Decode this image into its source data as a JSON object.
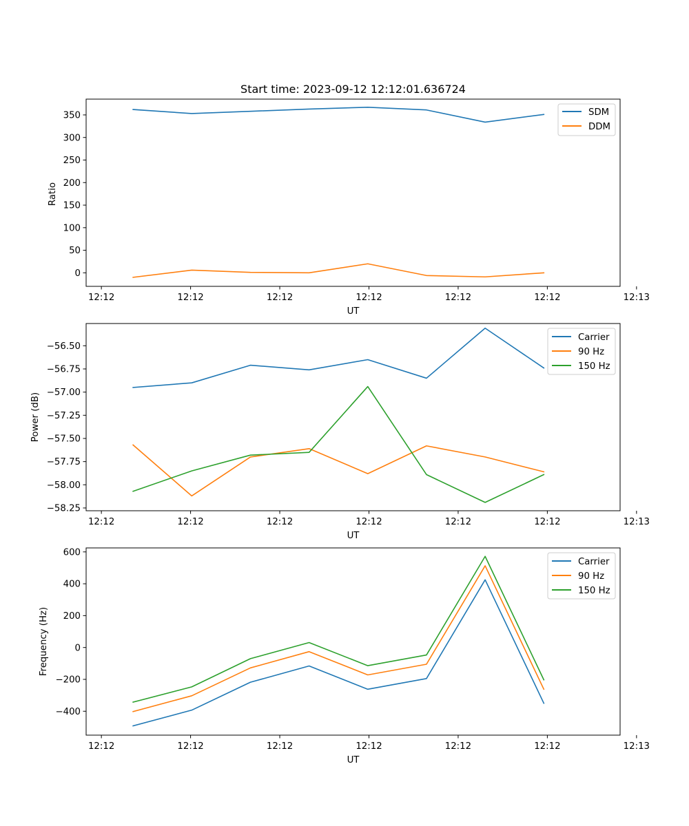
{
  "chart_data": [
    {
      "type": "line",
      "title": "Start time: 2023-09-12 12:12:01.636724",
      "xlabel": "UT",
      "ylabel": "Ratio",
      "x": [
        1,
        2,
        3,
        4,
        5,
        6,
        7,
        8
      ],
      "xlim": [
        0.2,
        9.3
      ],
      "xticks": [
        0.46,
        1.98,
        3.5,
        5.02,
        6.54,
        8.06,
        9.58
      ],
      "xtick_labels": [
        "12:12",
        "12:12",
        "12:12",
        "12:12",
        "12:12",
        "12:12",
        "12:13"
      ],
      "ylim": [
        -30,
        385
      ],
      "yticks": [
        0,
        50,
        100,
        150,
        200,
        250,
        300,
        350
      ],
      "ytick_labels": [
        "0",
        "50",
        "100",
        "150",
        "200",
        "250",
        "300",
        "350"
      ],
      "legend_position": "upper-right",
      "series": [
        {
          "name": "SDM",
          "color": "#1f77b4",
          "values": [
            362,
            353,
            358,
            363,
            367,
            361,
            334,
            351
          ]
        },
        {
          "name": "DDM",
          "color": "#ff7f0e",
          "values": [
            -10,
            6,
            1,
            0,
            20,
            -6,
            -9,
            0
          ]
        }
      ]
    },
    {
      "type": "line",
      "title": "",
      "xlabel": "UT",
      "ylabel": "Power (dB)",
      "x": [
        1,
        2,
        3,
        4,
        5,
        6,
        7,
        8
      ],
      "xlim": [
        0.2,
        9.3
      ],
      "xticks": [
        0.46,
        1.98,
        3.5,
        5.02,
        6.54,
        8.06,
        9.58
      ],
      "xtick_labels": [
        "12:12",
        "12:12",
        "12:12",
        "12:12",
        "12:12",
        "12:12",
        "12:13"
      ],
      "ylim": [
        -58.28,
        -56.26
      ],
      "yticks": [
        -58.25,
        -58.0,
        -57.75,
        -57.5,
        -57.25,
        -57.0,
        -56.75,
        -56.5
      ],
      "ytick_labels": [
        "−58.25",
        "−58.00",
        "−57.75",
        "−57.50",
        "−57.25",
        "−57.00",
        "−56.75",
        "−56.50"
      ],
      "legend_position": "upper-right",
      "series": [
        {
          "name": "Carrier",
          "color": "#1f77b4",
          "values": [
            -56.95,
            -56.9,
            -56.71,
            -56.76,
            -56.65,
            -56.85,
            -56.31,
            -56.74
          ]
        },
        {
          "name": "90 Hz",
          "color": "#ff7f0e",
          "values": [
            -57.57,
            -58.12,
            -57.7,
            -57.61,
            -57.88,
            -57.58,
            -57.7,
            -57.86
          ]
        },
        {
          "name": "150 Hz",
          "color": "#2ca02c",
          "values": [
            -58.07,
            -57.85,
            -57.68,
            -57.65,
            -56.94,
            -57.89,
            -58.19,
            -57.89
          ]
        }
      ]
    },
    {
      "type": "line",
      "title": "",
      "xlabel": "UT",
      "ylabel": "Frequency (Hz)",
      "x": [
        1,
        2,
        3,
        4,
        5,
        6,
        7,
        8
      ],
      "xlim": [
        0.2,
        9.3
      ],
      "xticks": [
        0.46,
        1.98,
        3.5,
        5.02,
        6.54,
        8.06,
        9.58
      ],
      "xtick_labels": [
        "12:12",
        "12:12",
        "12:12",
        "12:12",
        "12:12",
        "12:12",
        "12:13"
      ],
      "ylim": [
        -550,
        625
      ],
      "yticks": [
        -400,
        -200,
        0,
        200,
        400,
        600
      ],
      "ytick_labels": [
        "−400",
        "−200",
        "0",
        "200",
        "400",
        "600"
      ],
      "legend_position": "upper-right",
      "series": [
        {
          "name": "Carrier",
          "color": "#1f77b4",
          "values": [
            -492,
            -393,
            -218,
            -116,
            -262,
            -195,
            425,
            -350
          ]
        },
        {
          "name": "90 Hz",
          "color": "#ff7f0e",
          "values": [
            -402,
            -303,
            -128,
            -26,
            -172,
            -105,
            513,
            -262
          ]
        },
        {
          "name": "150 Hz",
          "color": "#2ca02c",
          "values": [
            -343,
            -247,
            -70,
            31,
            -114,
            -47,
            572,
            -203
          ]
        }
      ]
    }
  ]
}
